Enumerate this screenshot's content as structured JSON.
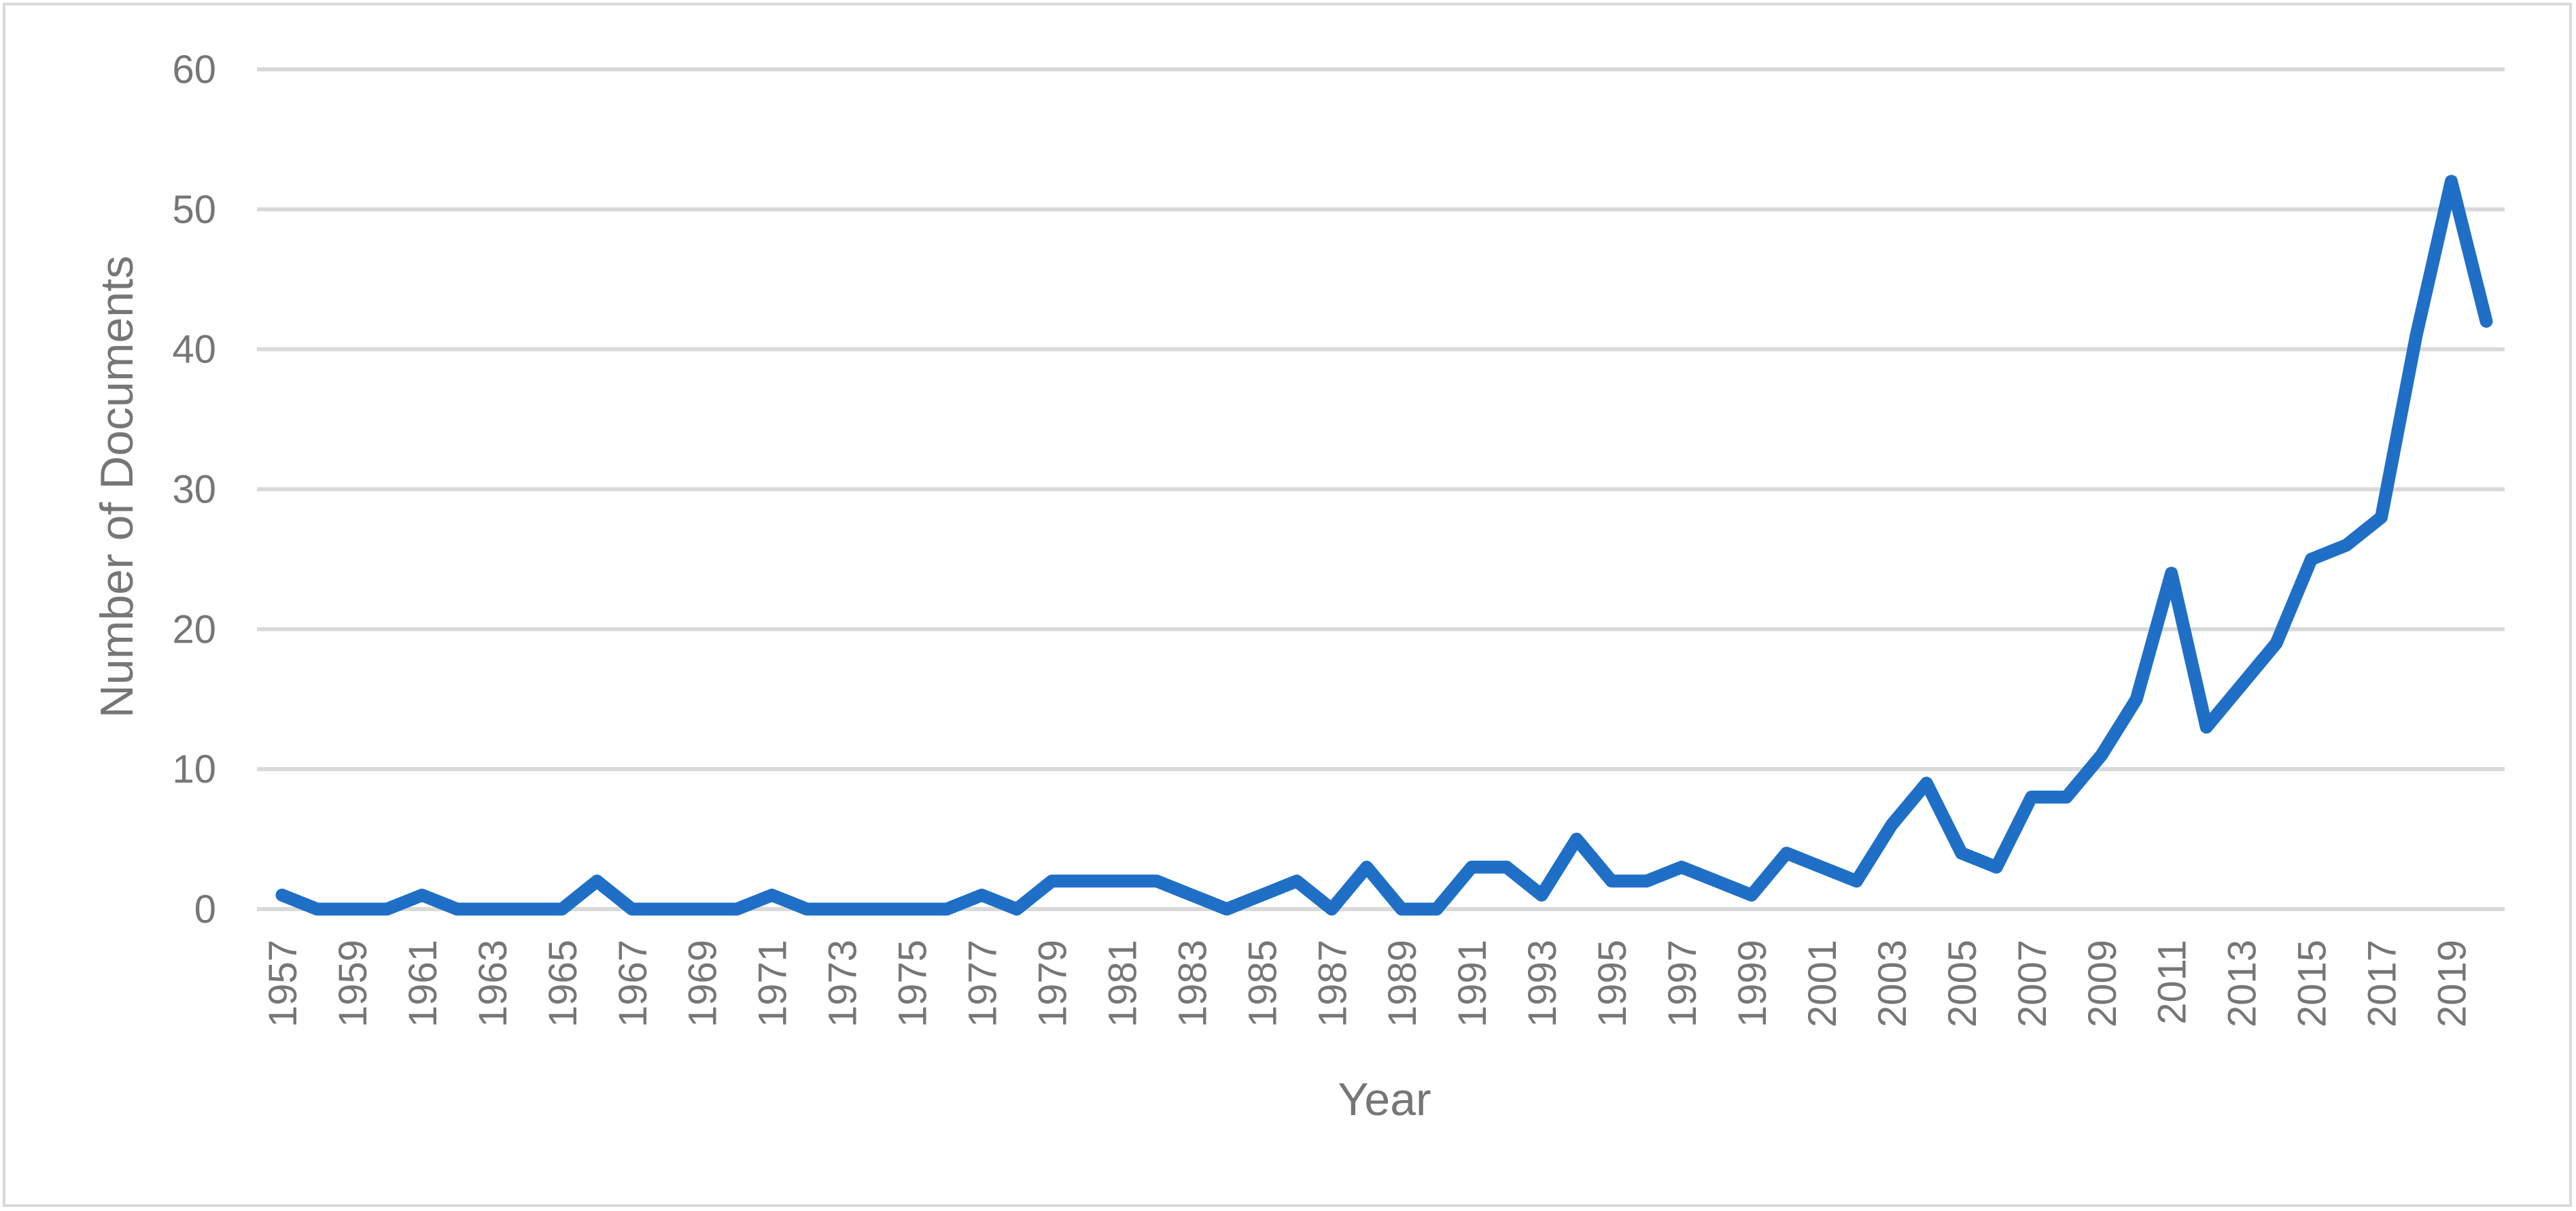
{
  "chart_data": {
    "type": "line",
    "xlabel": "Year",
    "ylabel": "Number of Documents",
    "ylim": [
      0,
      60
    ],
    "yticks": [
      0,
      10,
      20,
      30,
      40,
      50,
      60
    ],
    "grid": "horizontal",
    "legend": "none",
    "line_color": "#1f6fc6",
    "grid_color": "#d9d9d9",
    "x_tick_labels": [
      "1957",
      "1959",
      "1961",
      "1963",
      "1965",
      "1967",
      "1969",
      "1971",
      "1973",
      "1975",
      "1977",
      "1979",
      "1981",
      "1983",
      "1985",
      "1987",
      "1989",
      "1991",
      "1993",
      "1995",
      "1997",
      "1999",
      "2001",
      "2003",
      "2005",
      "2007",
      "2009",
      "2011",
      "2013",
      "2015",
      "2017",
      "2019"
    ],
    "x": [
      1957,
      1958,
      1959,
      1960,
      1961,
      1962,
      1963,
      1964,
      1965,
      1966,
      1967,
      1968,
      1969,
      1970,
      1971,
      1972,
      1973,
      1974,
      1975,
      1976,
      1977,
      1978,
      1979,
      1980,
      1981,
      1982,
      1983,
      1984,
      1985,
      1986,
      1987,
      1988,
      1989,
      1990,
      1991,
      1992,
      1993,
      1994,
      1995,
      1996,
      1997,
      1998,
      1999,
      2000,
      2001,
      2002,
      2003,
      2004,
      2005,
      2006,
      2007,
      2008,
      2009,
      2010,
      2011,
      2012,
      2013,
      2014,
      2015,
      2016,
      2017,
      2018,
      2019,
      2020
    ],
    "series": [
      {
        "values": [
          1,
          0,
          0,
          0,
          1,
          0,
          0,
          0,
          0,
          2,
          0,
          0,
          0,
          0,
          1,
          0,
          0,
          0,
          0,
          0,
          1,
          0,
          2,
          2,
          2,
          2,
          1,
          0,
          1,
          2,
          0,
          3,
          0,
          0,
          3,
          3,
          1,
          5,
          2,
          2,
          3,
          2,
          1,
          4,
          3,
          2,
          6,
          9,
          4,
          3,
          8,
          8,
          11,
          15,
          24,
          13,
          16,
          19,
          25,
          26,
          28,
          41,
          52,
          42
        ]
      }
    ]
  }
}
